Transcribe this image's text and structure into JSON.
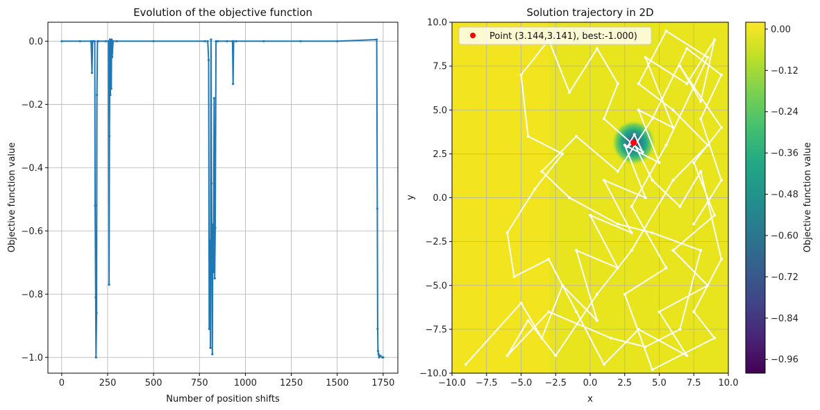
{
  "chart_data": [
    {
      "type": "line",
      "title": "Evolution of the objective function",
      "xlabel": "Number of position shifts",
      "ylabel": "Objective function value",
      "xlim": [
        -75,
        1830
      ],
      "ylim": [
        -1.05,
        0.06
      ],
      "xticks": [
        0,
        250,
        500,
        750,
        1000,
        1250,
        1500,
        1750
      ],
      "yticks": [
        0.0,
        -0.2,
        -0.4,
        -0.6,
        -0.8,
        -1.0
      ],
      "xtick_labels": [
        "0",
        "250",
        "500",
        "750",
        "1000",
        "1250",
        "1500",
        "1750"
      ],
      "ytick_labels": [
        "0.0",
        "−0.2",
        "−0.4",
        "−0.6",
        "−0.8",
        "−1.0"
      ],
      "grid": true,
      "color": "#1f77b4",
      "series": [
        {
          "x": [
            0,
            100,
            160,
            165,
            168,
            172,
            180,
            182,
            185,
            187,
            190,
            192,
            195,
            200,
            240,
            255,
            258,
            260,
            263,
            265,
            268,
            270,
            272,
            275,
            280,
            300,
            500,
            780,
            795,
            800,
            803,
            806,
            810,
            813,
            816,
            820,
            823,
            826,
            830,
            833,
            836,
            840,
            850,
            900,
            930,
            933,
            936,
            950,
            1100,
            1300,
            1500,
            1715,
            1718,
            1720,
            1722,
            1725,
            1728,
            1735,
            1745,
            1750
          ],
          "y": [
            0.0,
            0.0,
            0.0,
            -0.1,
            0.0,
            0.0,
            0.0,
            -0.52,
            -0.81,
            -1.0,
            -0.86,
            -0.17,
            0.0,
            0.0,
            0.0,
            0.0,
            -0.77,
            -0.3,
            0.005,
            -0.17,
            0.005,
            -0.15,
            0.005,
            -0.05,
            0.0,
            0.0,
            0.0,
            0.0,
            0.0,
            -0.06,
            -0.91,
            -0.63,
            -0.97,
            0.005,
            -0.45,
            -0.99,
            -0.58,
            -0.73,
            -0.18,
            -0.75,
            -0.59,
            0.0,
            0.0,
            0.0,
            0.0,
            -0.135,
            0.0,
            0.0,
            0.0,
            0.0,
            0.0,
            0.005,
            -0.53,
            -0.91,
            -0.98,
            -0.99,
            -1.0,
            -0.995,
            -1.0,
            -1.0
          ]
        }
      ]
    },
    {
      "type": "heatmap",
      "title": "Solution trajectory in 2D",
      "xlabel": "x",
      "ylabel": "y",
      "xlim": [
        -10,
        10
      ],
      "ylim": [
        -10,
        10
      ],
      "xticks": [
        -10,
        -7.5,
        -5,
        -2.5,
        0,
        2.5,
        5,
        7.5,
        10
      ],
      "yticks": [
        10,
        7.5,
        5,
        2.5,
        0,
        -2.5,
        -5,
        -7.5,
        -10
      ],
      "xtick_labels": [
        "−10.0",
        "−7.5",
        "−5.0",
        "−2.5",
        "0.0",
        "2.5",
        "5.0",
        "7.5",
        "10.0"
      ],
      "ytick_labels": [
        "10.0",
        "7.5",
        "5.0",
        "2.5",
        "0.0",
        "−2.5",
        "−5.0",
        "−7.5",
        "−10.0"
      ],
      "grid": true,
      "colormap": "viridis",
      "minimum": {
        "x": 3.144,
        "y": 3.141,
        "value": -1.0
      },
      "legend": {
        "label": "Point (3.144,3.141), best:-1.000)",
        "position": "top-left",
        "marker_color": "#ff0000"
      },
      "colorbar": {
        "label": "Objective function value",
        "range": [
          -1.0,
          0.02
        ],
        "ticks": [
          0.0,
          -0.12,
          -0.24,
          -0.36,
          -0.48,
          -0.6,
          -0.72,
          -0.84,
          -0.96
        ],
        "tick_labels": [
          "0.00",
          "−0.12",
          "−0.24",
          "−0.36",
          "−0.48",
          "−0.60",
          "−0.72",
          "−0.84",
          "−0.96"
        ]
      },
      "trajectory": {
        "color": "#ffffff",
        "points": [
          [
            -9.0,
            -9.5
          ],
          [
            -5.0,
            -6.0
          ],
          [
            -3.5,
            -8.0
          ],
          [
            -2.0,
            -5.0
          ],
          [
            0.5,
            -7.0
          ],
          [
            -1.0,
            -3.0
          ],
          [
            2.0,
            -4.0
          ],
          [
            0.0,
            -1.0
          ],
          [
            3.0,
            -2.0
          ],
          [
            1.0,
            1.0
          ],
          [
            4.0,
            0.0
          ],
          [
            2.5,
            3.0
          ],
          [
            5.0,
            2.0
          ],
          [
            3.5,
            5.0
          ],
          [
            6.0,
            4.0
          ],
          [
            4.0,
            8.0
          ],
          [
            7.0,
            6.5
          ],
          [
            9.0,
            9.0
          ],
          [
            8.0,
            5.5
          ],
          [
            6.5,
            7.5
          ],
          [
            9.5,
            4.0
          ],
          [
            7.5,
            2.0
          ],
          [
            9.0,
            -1.0
          ],
          [
            6.0,
            -3.0
          ],
          [
            8.5,
            -5.0
          ],
          [
            5.0,
            -6.5
          ],
          [
            7.0,
            -9.0
          ],
          [
            3.5,
            -7.5
          ],
          [
            1.0,
            -9.5
          ],
          [
            -1.0,
            -6.5
          ],
          [
            -3.0,
            -3.5
          ],
          [
            -5.5,
            -4.5
          ],
          [
            -6.0,
            -2.0
          ],
          [
            -4.0,
            0.5
          ],
          [
            -2.0,
            2.5
          ],
          [
            -4.5,
            3.5
          ],
          [
            -5.0,
            7.0
          ],
          [
            -3.0,
            9.0
          ],
          [
            -1.5,
            6.0
          ],
          [
            0.5,
            8.5
          ],
          [
            2.0,
            6.5
          ],
          [
            1.0,
            4.5
          ],
          [
            3.0,
            3.1
          ],
          [
            3.8,
            2.6
          ],
          [
            3.2,
            3.6
          ],
          [
            2.7,
            2.9
          ],
          [
            3.144,
            3.141
          ],
          [
            4.5,
            1.0
          ],
          [
            6.5,
            -0.5
          ],
          [
            8.0,
            1.5
          ],
          [
            9.5,
            -3.5
          ],
          [
            7.5,
            -6.5
          ],
          [
            9.0,
            -8.0
          ],
          [
            4.5,
            -9.8
          ],
          [
            2.5,
            -5.5
          ],
          [
            5.5,
            -4.0
          ],
          [
            3.0,
            -0.5
          ],
          [
            5.5,
            3.0
          ],
          [
            8.5,
            8.0
          ],
          [
            5.5,
            9.5
          ],
          [
            3.5,
            6.5
          ],
          [
            6.0,
            5.0
          ],
          [
            8.5,
            3.0
          ],
          [
            6.0,
            1.0
          ],
          [
            3.0,
            -3.0
          ],
          [
            0.5,
            -5.5
          ],
          [
            -2.5,
            -9.0
          ],
          [
            -4.5,
            -7.0
          ],
          [
            -6.0,
            -9.0
          ],
          [
            -3.0,
            -6.5
          ],
          [
            1.5,
            -8.0
          ],
          [
            4.0,
            -8.5
          ],
          [
            6.5,
            -7.5
          ],
          [
            8.0,
            -3.0
          ],
          [
            4.5,
            -2.0
          ],
          [
            2.0,
            -1.5
          ],
          [
            -1.5,
            0.0
          ],
          [
            -3.5,
            1.5
          ],
          [
            -1.0,
            3.5
          ],
          [
            2.0,
            1.5
          ],
          [
            4.5,
            4.5
          ],
          [
            7.0,
            8.5
          ],
          [
            9.5,
            7.0
          ],
          [
            8.0,
            4.5
          ],
          [
            9.5,
            1.0
          ],
          [
            7.5,
            -1.5
          ]
        ]
      }
    }
  ]
}
